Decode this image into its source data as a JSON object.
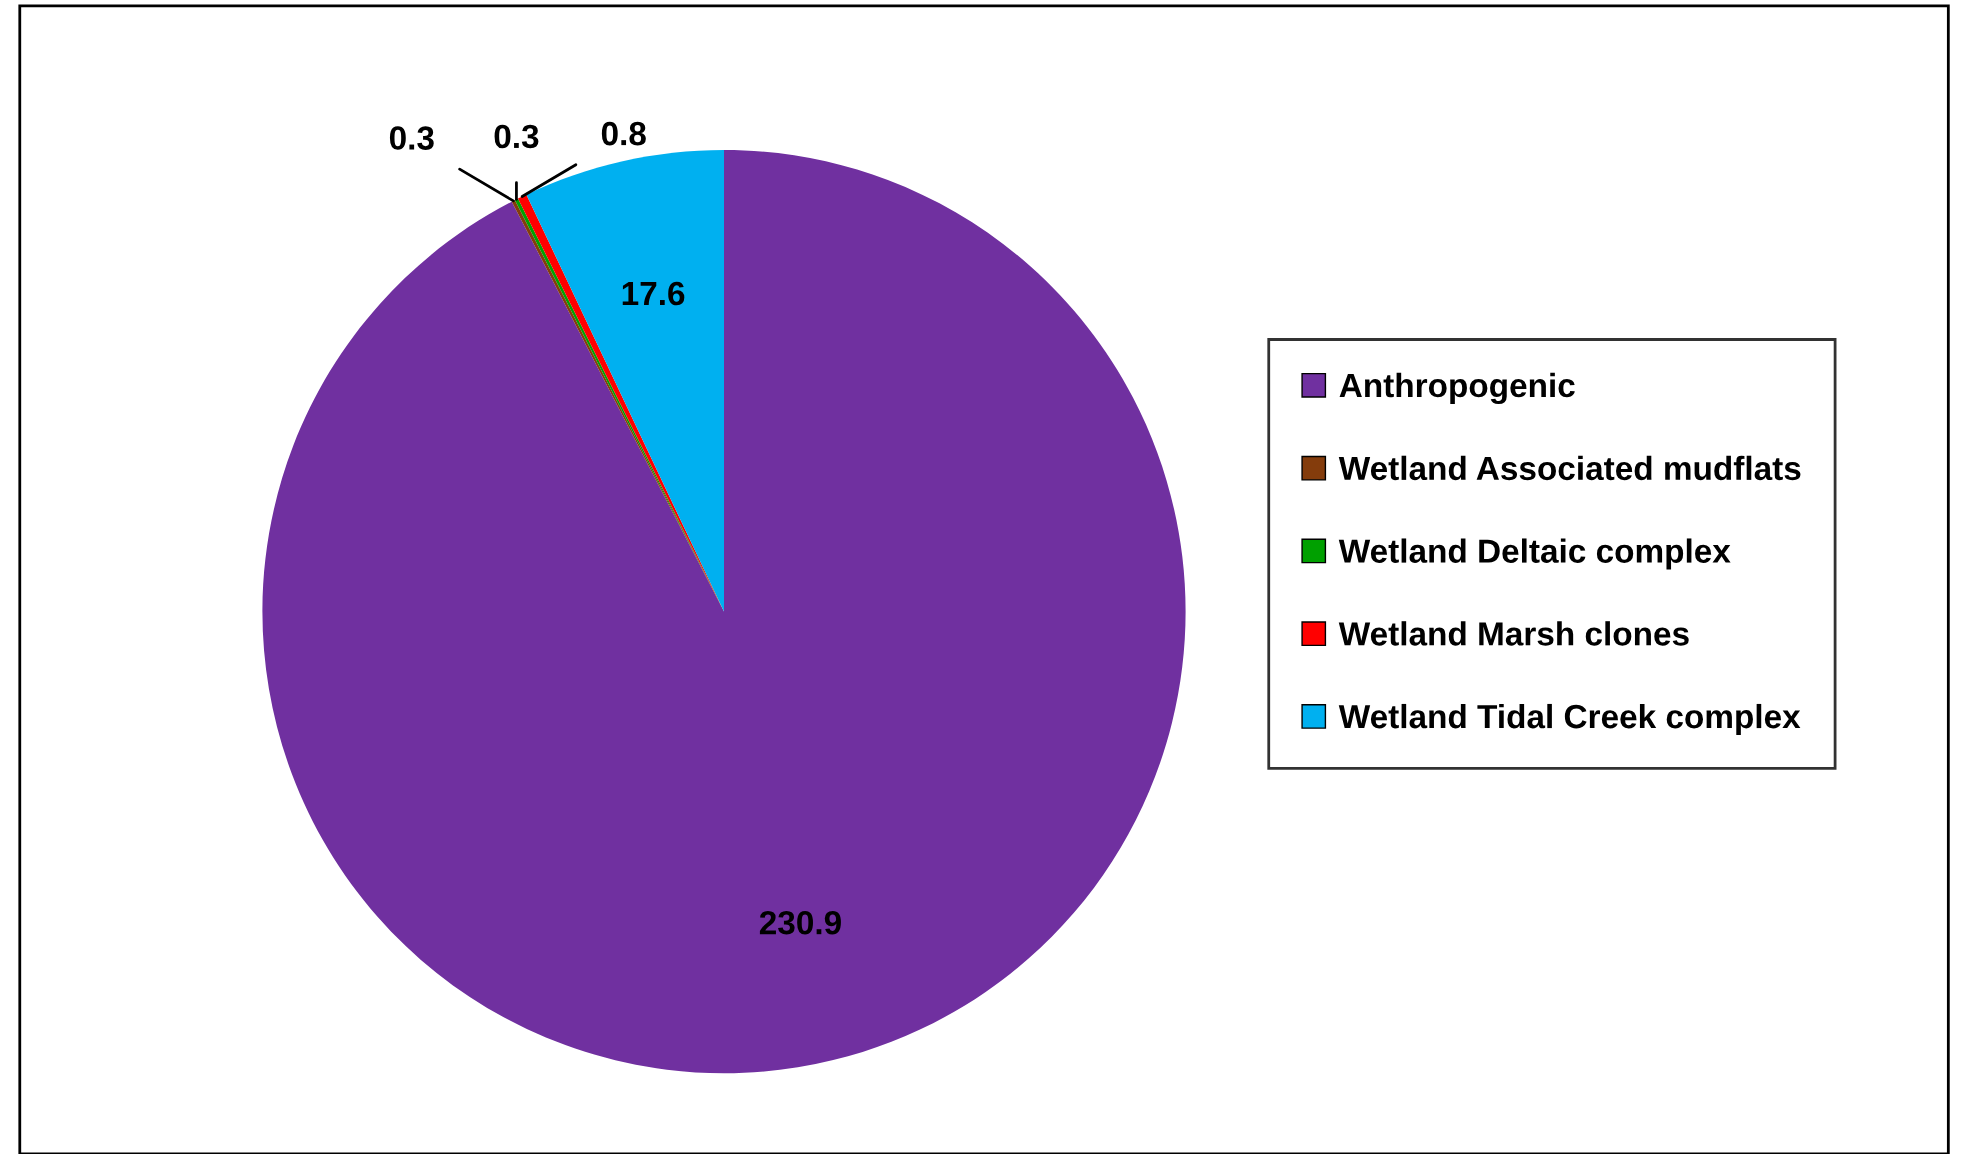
{
  "chart_data": {
    "type": "pie",
    "categories": [
      "Anthropogenic",
      "Wetland Associated mudflats",
      "Wetland Deltaic complex",
      "Wetland Marsh clones",
      "Wetland Tidal Creek complex"
    ],
    "values": [
      230.9,
      0.3,
      0.3,
      0.8,
      17.6
    ],
    "colors": [
      "#7030a0",
      "#843c0c",
      "#00a000",
      "#ff0000",
      "#00b0f0"
    ],
    "data_labels": true,
    "legend": "right"
  }
}
